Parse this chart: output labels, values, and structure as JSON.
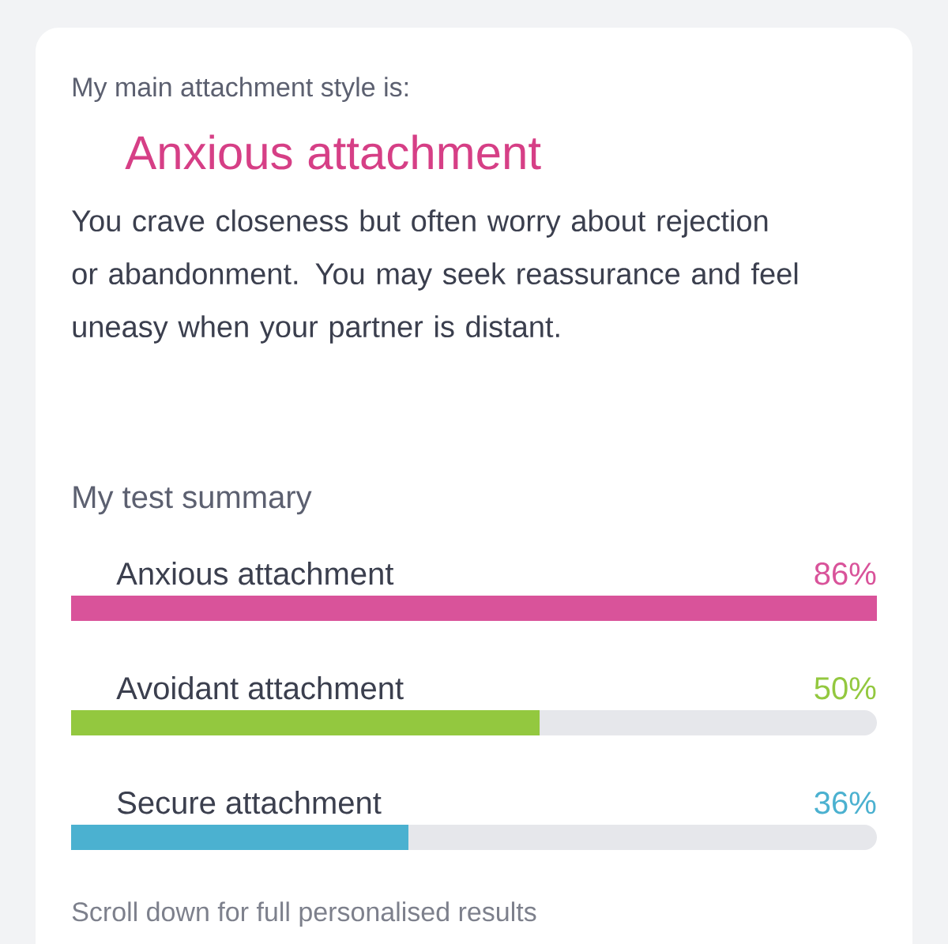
{
  "chart_data": {
    "type": "bar",
    "orientation": "horizontal",
    "subtitle": "My main attachment style is:",
    "title": "Anxious attachment",
    "annotations": [
      "You crave closeness but often worry about rejection or abandonment. You may seek reassurance and feel uneasy when your partner is distant.",
      "My test summary",
      "Scroll down for full personalised results"
    ],
    "categories": [
      "Anxious attachment",
      "Avoidant attachment",
      "Secure attachment"
    ],
    "values": [
      86,
      50,
      36
    ],
    "xlim": [
      0,
      86
    ],
    "colors": [
      "#d9539a",
      "#93c83f",
      "#4bb1d0"
    ],
    "value_labels": [
      "86%",
      "50%",
      "36%"
    ]
  }
}
